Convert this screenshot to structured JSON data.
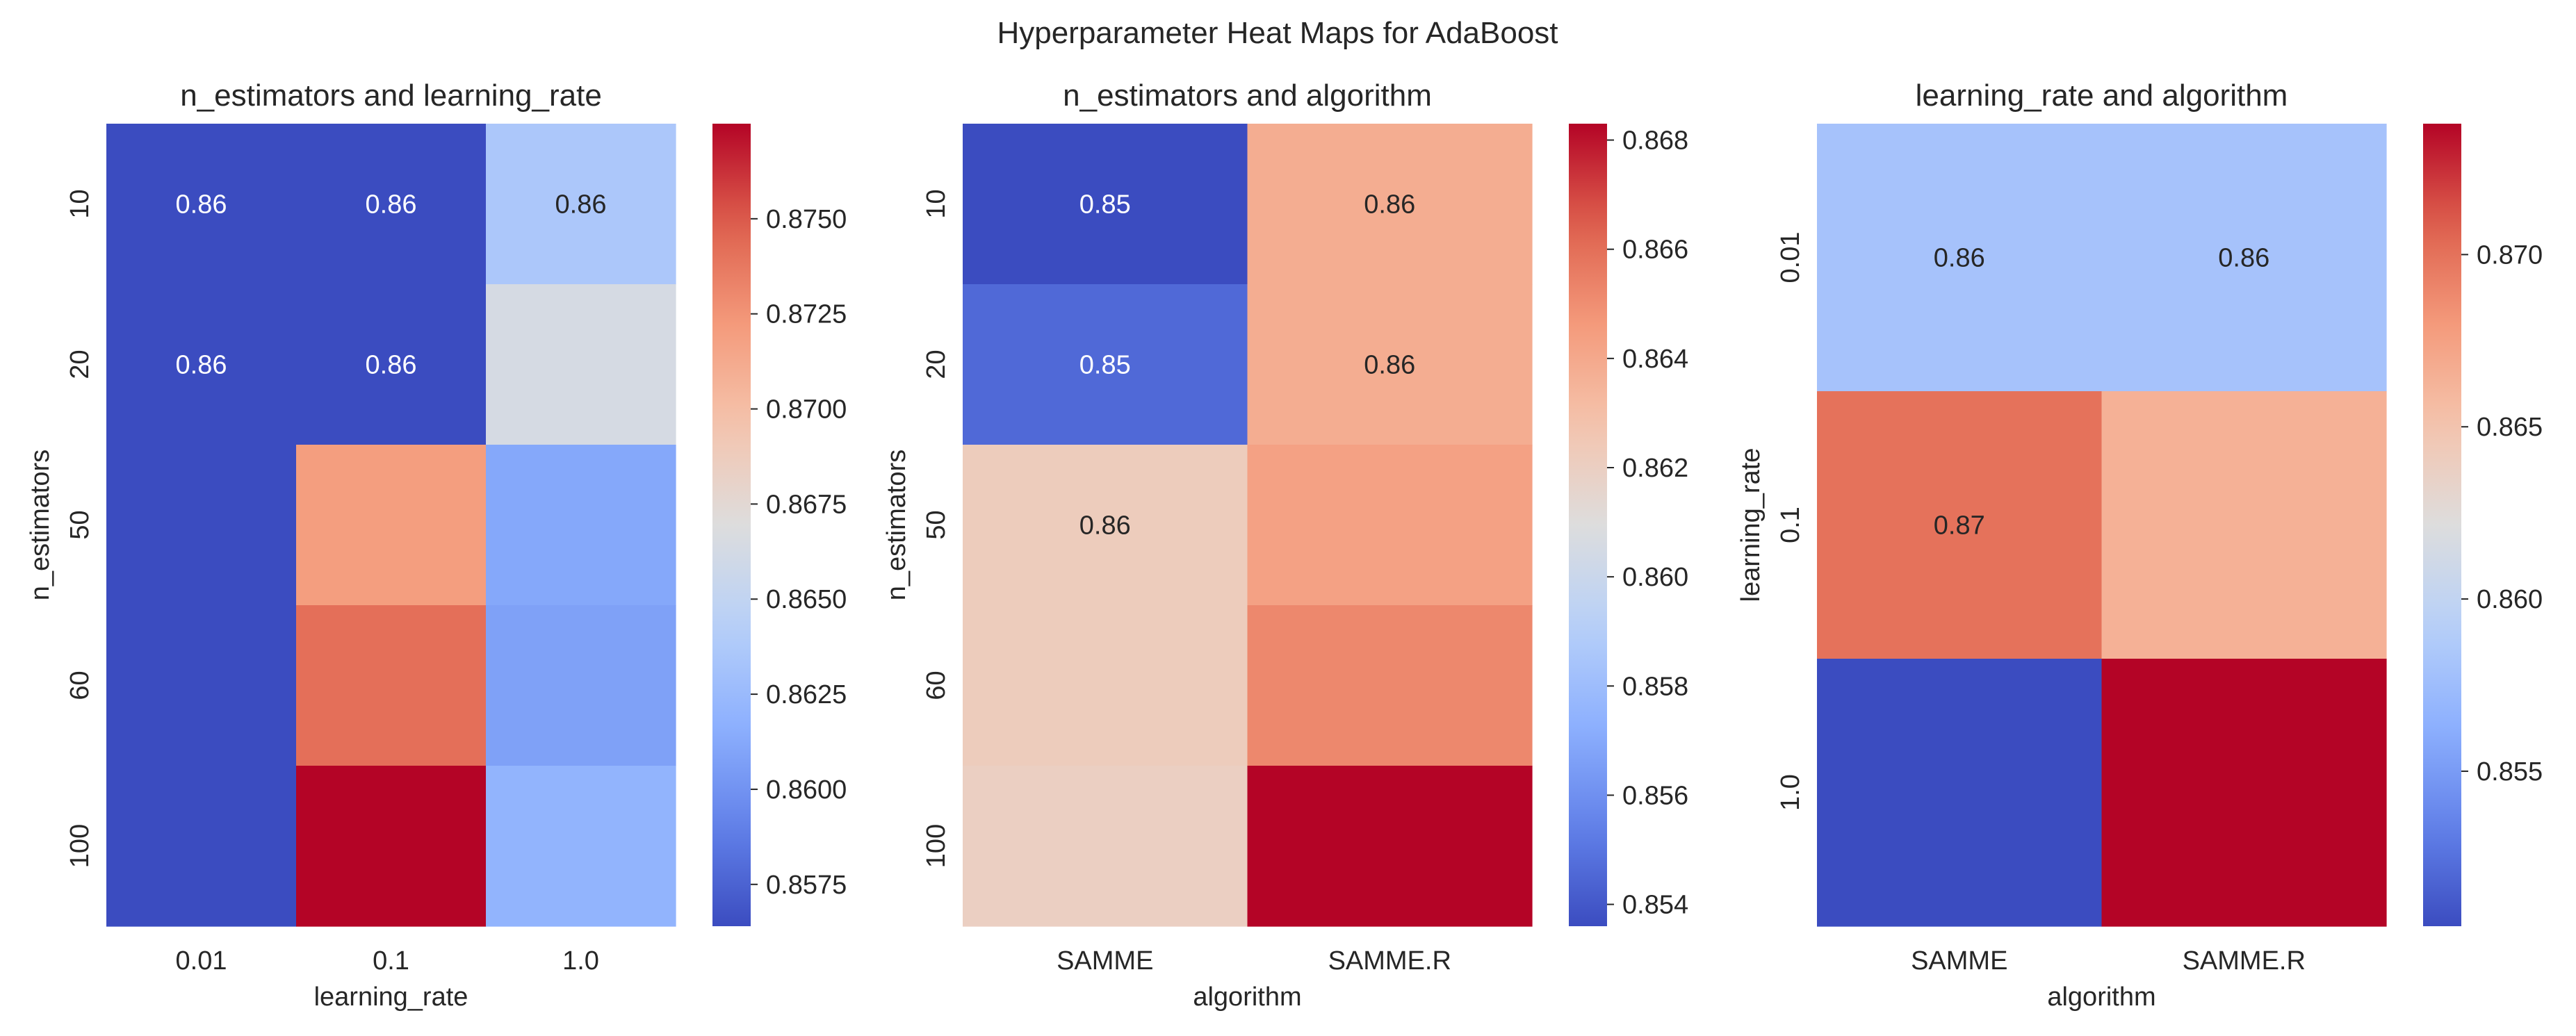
{
  "figure": {
    "suptitle": "Hyperparameter Heat Maps for AdaBoost"
  },
  "chart_data": [
    {
      "type": "heatmap",
      "title": "n_estimators and learning_rate",
      "xlabel": "learning_rate",
      "ylabel": "n_estimators",
      "x_categories": [
        "0.01",
        "0.1",
        "1.0"
      ],
      "y_categories": [
        "10",
        "20",
        "50",
        "60",
        "100"
      ],
      "values": [
        [
          0.8564,
          0.8564,
          0.8636
        ],
        [
          0.8564,
          0.8564,
          0.8664
        ],
        [
          0.8564,
          0.872,
          0.8612
        ],
        [
          0.8564,
          0.8742,
          0.8608
        ],
        [
          0.8564,
          0.8775,
          0.862
        ]
      ],
      "cell_labels": [
        [
          "0.86",
          "0.86",
          "0.86"
        ],
        [
          "0.86",
          "0.86",
          ""
        ],
        [
          "",
          "",
          ""
        ],
        [
          "",
          "",
          ""
        ],
        [
          "",
          "",
          ""
        ]
      ],
      "vmin": 0.8564,
      "vmax": 0.8775,
      "colorbar_ticks": [
        "0.8575",
        "0.8600",
        "0.8625",
        "0.8650",
        "0.8675",
        "0.8700",
        "0.8725",
        "0.8750"
      ],
      "colormap": "coolwarm"
    },
    {
      "type": "heatmap",
      "title": "n_estimators and algorithm",
      "xlabel": "algorithm",
      "ylabel": "n_estimators",
      "x_categories": [
        "SAMME",
        "SAMME.R"
      ],
      "y_categories": [
        "10",
        "20",
        "50",
        "60",
        "100"
      ],
      "values": [
        [
          0.8536,
          0.8638
        ],
        [
          0.8546,
          0.8638
        ],
        [
          0.8622,
          0.8643
        ],
        [
          0.8622,
          0.8652
        ],
        [
          0.862,
          0.8683
        ]
      ],
      "cell_labels": [
        [
          "0.85",
          "0.86"
        ],
        [
          "0.85",
          "0.86"
        ],
        [
          "0.86",
          ""
        ],
        [
          "",
          ""
        ],
        [
          "",
          ""
        ]
      ],
      "vmin": 0.8536,
      "vmax": 0.8683,
      "colorbar_ticks": [
        "0.854",
        "0.856",
        "0.858",
        "0.860",
        "0.862",
        "0.864",
        "0.866",
        "0.868"
      ],
      "colormap": "coolwarm"
    },
    {
      "type": "heatmap",
      "title": "learning_rate and algorithm",
      "xlabel": "algorithm",
      "ylabel": "learning_rate",
      "x_categories": [
        "SAMME",
        "SAMME.R"
      ],
      "y_categories": [
        "0.01",
        "0.1",
        "1.0"
      ],
      "values": [
        [
          0.858,
          0.858
        ],
        [
          0.87,
          0.8664
        ],
        [
          0.8505,
          0.8738
        ]
      ],
      "cell_labels": [
        [
          "0.86",
          "0.86"
        ],
        [
          "0.87",
          ""
        ],
        [
          "",
          ""
        ]
      ],
      "vmin": 0.8505,
      "vmax": 0.8738,
      "colorbar_ticks": [
        "0.855",
        "0.860",
        "0.865",
        "0.870"
      ],
      "colormap": "coolwarm"
    }
  ]
}
